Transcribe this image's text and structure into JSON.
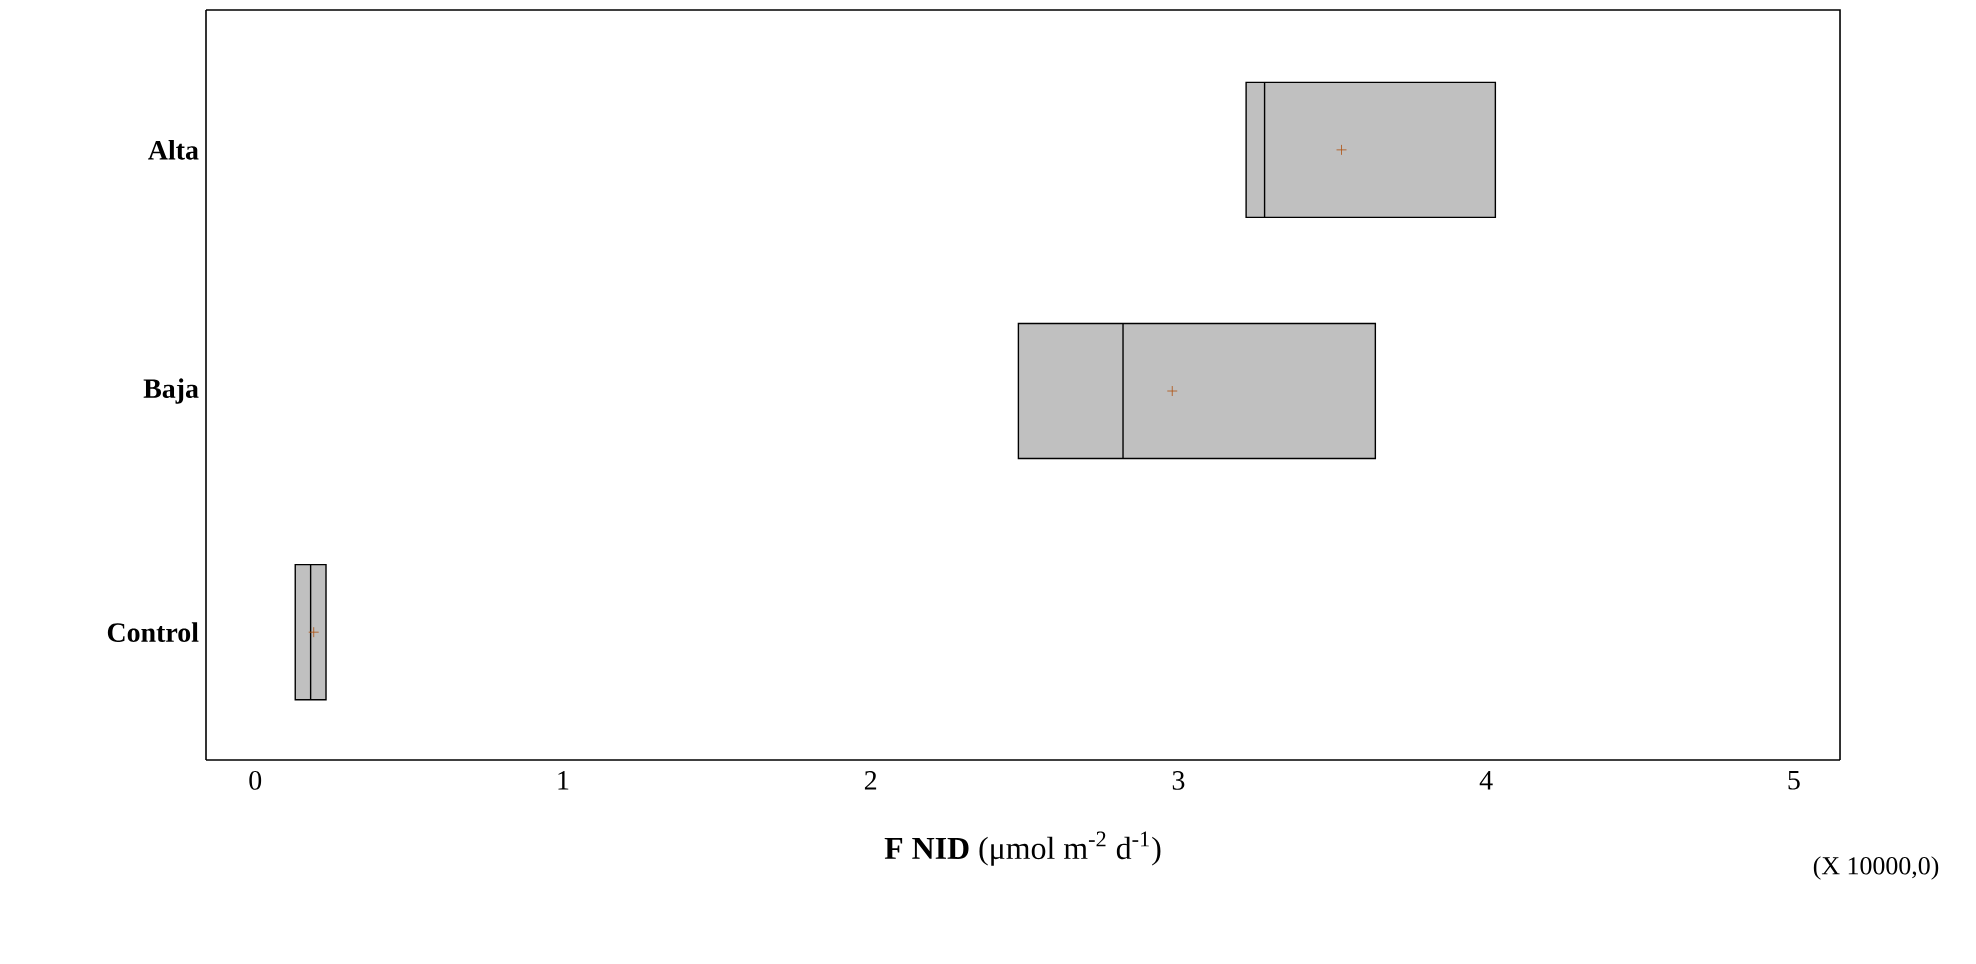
{
  "chart_data": {
    "type": "box",
    "orientation": "horizontal",
    "categories": [
      "Alta",
      "Baja",
      "Control"
    ],
    "boxes": [
      {
        "low": 3.22,
        "q1": 3.22,
        "median": 3.28,
        "q3": 4.03,
        "high": 4.03,
        "mean": 3.53
      },
      {
        "low": 2.48,
        "q1": 2.48,
        "median": 2.82,
        "q3": 3.64,
        "high": 3.64,
        "mean": 2.98
      },
      {
        "low": 0.13,
        "q1": 0.13,
        "median": 0.18,
        "q3": 0.23,
        "high": 0.23,
        "mean": 0.19
      }
    ],
    "xlim": [
      -0.16,
      5.15
    ],
    "xticks": [
      0,
      1,
      2,
      3,
      4,
      5
    ],
    "xlabel": "**F NID** (μmol m$^{-2}$ d$^{-1}$)",
    "annotations": [
      "(X 10000,0)"
    ]
  }
}
